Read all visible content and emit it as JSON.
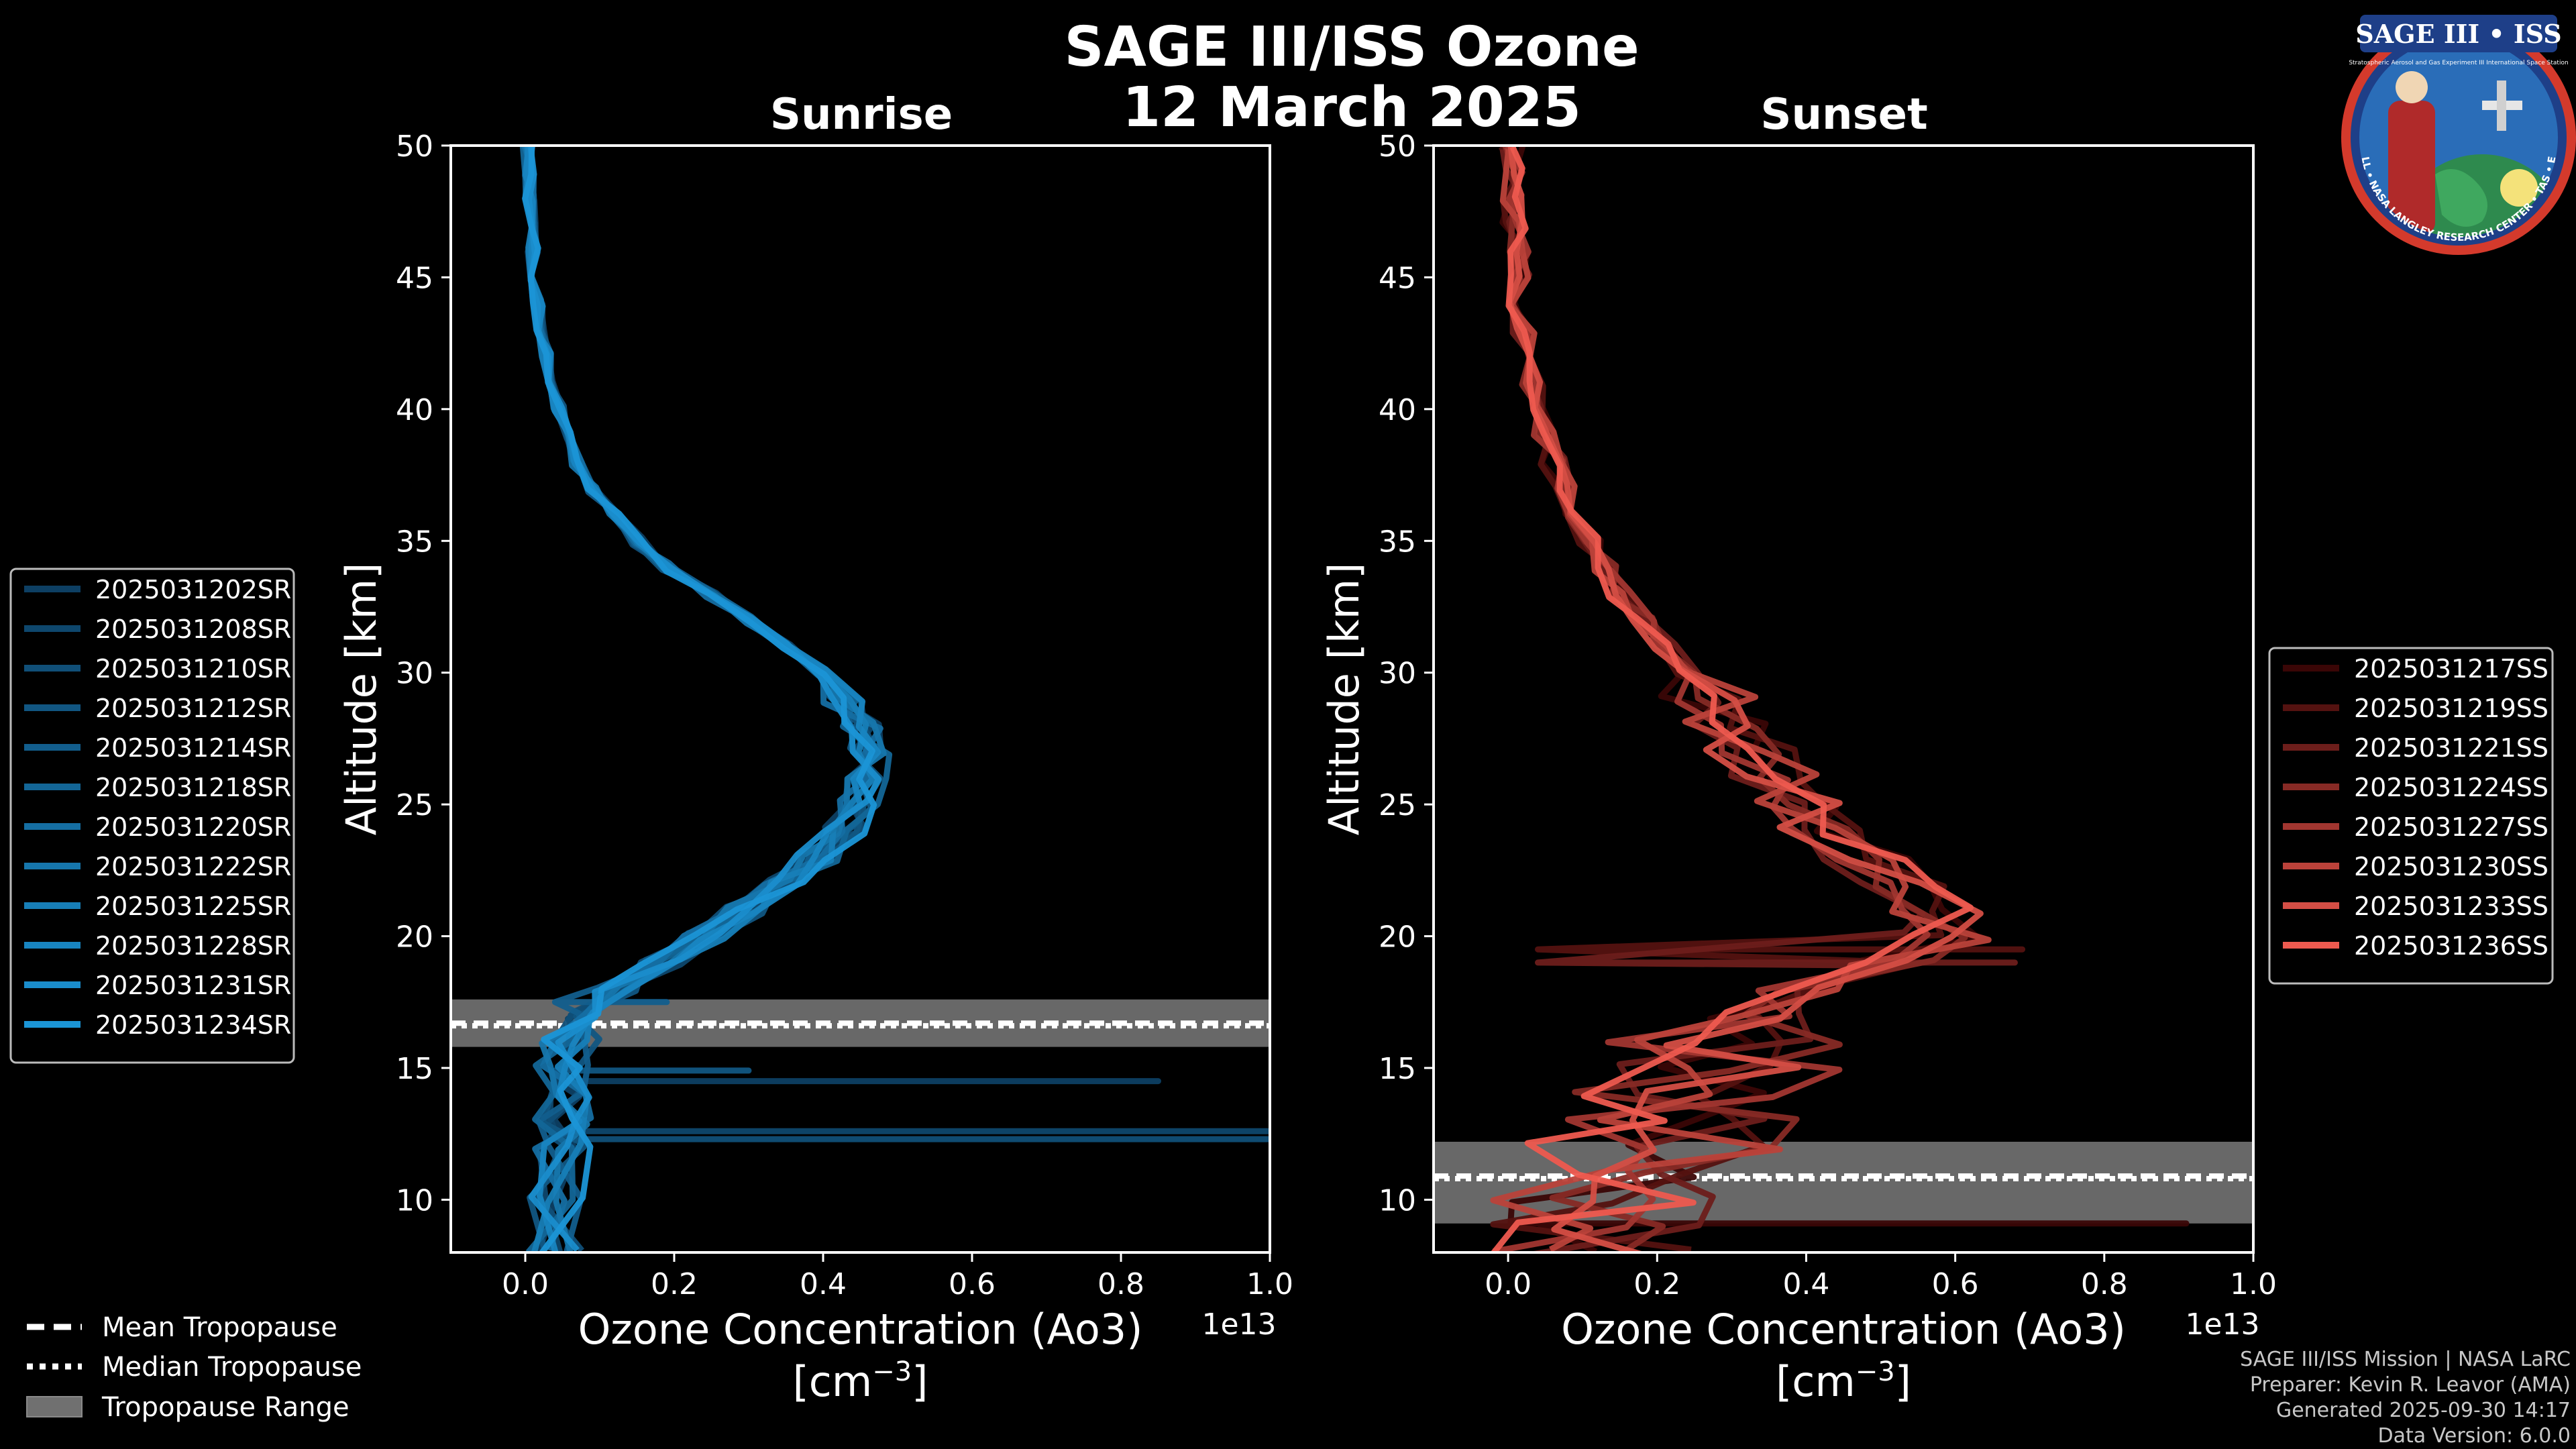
{
  "figure": {
    "title_line1": "SAGE III/ISS Ozone",
    "title_line2": "12 March 2025",
    "logo_text": "SAGE III • ISS",
    "logo_ring_text": "BALL • NASA LANGLEY RESEARCH CENTER • TAS • ESA",
    "logo_small_text": "Stratospheric Aerosol and Gas Experiment III International Space Station"
  },
  "credits": {
    "line1": "SAGE III/ISS Mission | NASA LaRC",
    "line2": "Preparer: Kevin R. Leavor (AMA)",
    "line3": "Generated 2025-09-30 14:17",
    "line4": "Data Version: 6.0.0"
  },
  "tropopause_legend": [
    {
      "label": "Mean Tropopause",
      "style": "dashed"
    },
    {
      "label": "Median Tropopause",
      "style": "dotted"
    },
    {
      "label": "Tropopause Range",
      "style": "band"
    }
  ],
  "chart_data": [
    {
      "type": "line",
      "title": "Sunrise",
      "xlabel": "Ozone Concentration (Ao3)",
      "xunit": "[cm",
      "xunit_exp": "−3",
      "xunit_end": "]",
      "ylabel": "Altitude [km]",
      "xlim": [
        -0.1,
        1.0
      ],
      "ylim": [
        8,
        50
      ],
      "x_scale_label": "1e13",
      "x_scale": 10000000000000.0,
      "xticks": [
        0.0,
        0.2,
        0.4,
        0.6,
        0.8,
        1.0
      ],
      "xtick_labels": [
        "0.0",
        "0.2",
        "0.4",
        "0.6",
        "0.8",
        "1.0"
      ],
      "yticks": [
        10,
        15,
        20,
        25,
        30,
        35,
        40,
        45,
        50
      ],
      "ytick_labels": [
        "10",
        "15",
        "20",
        "25",
        "30",
        "35",
        "40",
        "45",
        "50"
      ],
      "tropopause": {
        "mean": 16.7,
        "median": 16.6,
        "range": [
          15.8,
          17.6
        ]
      },
      "color_dark": "#0d3f63",
      "color_light": "#1b95d6",
      "series_names": [
        "2025031202SR",
        "2025031208SR",
        "2025031210SR",
        "2025031212SR",
        "2025031214SR",
        "2025031218SR",
        "2025031220SR",
        "2025031222SR",
        "2025031225SR",
        "2025031228SR",
        "2025031231SR",
        "2025031234SR"
      ],
      "base_profile": {
        "altitude": [
          8,
          10,
          12,
          13,
          14,
          15,
          16,
          17,
          18,
          19,
          20,
          21,
          22,
          23,
          24,
          25,
          26,
          27,
          28,
          29,
          30,
          31,
          32,
          33,
          34,
          35,
          36,
          37,
          38,
          39,
          40,
          41,
          42,
          43,
          44,
          45,
          46,
          47,
          48,
          49,
          50
        ],
        "ozone": [
          0.04,
          0.04,
          0.05,
          0.05,
          0.05,
          0.05,
          0.06,
          0.08,
          0.12,
          0.18,
          0.24,
          0.3,
          0.35,
          0.39,
          0.43,
          0.45,
          0.46,
          0.46,
          0.45,
          0.43,
          0.4,
          0.35,
          0.3,
          0.25,
          0.19,
          0.15,
          0.12,
          0.09,
          0.07,
          0.055,
          0.045,
          0.035,
          0.028,
          0.022,
          0.017,
          0.013,
          0.01,
          0.008,
          0.006,
          0.005,
          0.004
        ]
      },
      "spikes": [
        {
          "altitude": 14.5,
          "value": 0.85
        },
        {
          "altitude": 12.6,
          "value": 1.0
        },
        {
          "altitude": 12.3,
          "value": 1.0
        },
        {
          "altitude": 14.9,
          "value": 0.3
        },
        {
          "altitude": 17.5,
          "value": 0.19
        }
      ]
    },
    {
      "type": "line",
      "title": "Sunset",
      "xlabel": "Ozone Concentration (Ao3)",
      "xunit": "[cm",
      "xunit_exp": "−3",
      "xunit_end": "]",
      "ylabel": "Altitude [km]",
      "xlim": [
        -0.1,
        1.0
      ],
      "ylim": [
        8,
        50
      ],
      "x_scale_label": "1e13",
      "x_scale": 10000000000000.0,
      "xticks": [
        0.0,
        0.2,
        0.4,
        0.6,
        0.8,
        1.0
      ],
      "xtick_labels": [
        "0.0",
        "0.2",
        "0.4",
        "0.6",
        "0.8",
        "1.0"
      ],
      "yticks": [
        10,
        15,
        20,
        25,
        30,
        35,
        40,
        45,
        50
      ],
      "ytick_labels": [
        "10",
        "15",
        "20",
        "25",
        "30",
        "35",
        "40",
        "45",
        "50"
      ],
      "tropopause": {
        "mean": 10.9,
        "median": 10.8,
        "range": [
          9.1,
          12.2
        ]
      },
      "color_dark": "#3a0606",
      "color_light": "#ee5a4f",
      "series_names": [
        "2025031217SS",
        "2025031219SS",
        "2025031221SS",
        "2025031224SS",
        "2025031227SS",
        "2025031230SS",
        "2025031233SS",
        "2025031236SS"
      ],
      "base_profile": {
        "altitude": [
          8,
          9,
          10,
          11,
          12,
          13,
          14,
          15,
          16,
          17,
          18,
          19,
          20,
          21,
          22,
          23,
          24,
          25,
          26,
          27,
          28,
          29,
          30,
          31,
          32,
          33,
          34,
          35,
          36,
          37,
          38,
          39,
          40,
          41,
          42,
          43,
          44,
          45,
          46,
          47,
          48,
          49,
          50
        ],
        "ozone": [
          0.08,
          0.1,
          0.14,
          0.18,
          0.2,
          0.22,
          0.25,
          0.28,
          0.3,
          0.33,
          0.4,
          0.52,
          0.58,
          0.57,
          0.52,
          0.48,
          0.43,
          0.38,
          0.35,
          0.33,
          0.3,
          0.27,
          0.24,
          0.21,
          0.18,
          0.15,
          0.13,
          0.11,
          0.09,
          0.075,
          0.06,
          0.05,
          0.04,
          0.032,
          0.026,
          0.021,
          0.017,
          0.014,
          0.011,
          0.009,
          0.007,
          0.006,
          0.005
        ]
      },
      "spikes": [
        {
          "altitude": 9.1,
          "value": 0.91
        },
        {
          "altitude": 19.5,
          "value": 0.69
        },
        {
          "altitude": 19.0,
          "value": 0.68
        }
      ]
    }
  ]
}
